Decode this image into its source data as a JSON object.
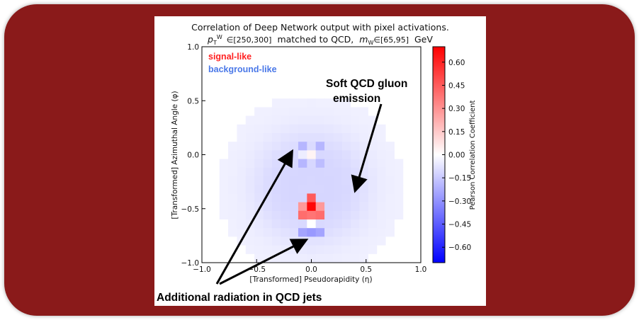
{
  "chart_data": {
    "type": "heatmap",
    "title": "Correlation of Deep Network output with pixel activations.",
    "subtitle": "p_T^W ∈[250,300] matched to QCD, m_W∈[65,95] GeV",
    "subtitle_parts": {
      "pt": "p",
      "pt_sub": "T",
      "pt_sup": "W",
      "pt_range": "∈[250,300]",
      "mid": "matched to QCD,",
      "m": "m",
      "m_sub": "W",
      "m_range": "∈[65,95]",
      "unit": "GeV"
    },
    "xlabel": "[Transformed] Pseudorapidity (η)",
    "ylabel": "[Transformed] Azimuthal Angle (φ)",
    "xlim": [
      -1.0,
      1.0
    ],
    "ylim": [
      -1.0,
      1.0
    ],
    "xticks": [
      "−1.0",
      "−0.5",
      "0.0",
      "0.5",
      "1.0"
    ],
    "yticks": [
      "1.0",
      "0.5",
      "0.0",
      "−0.5",
      "−1.0"
    ],
    "colorbar": {
      "label": "Pearson Correlation Coefficient",
      "range": [
        -0.7,
        0.7
      ],
      "ticks": [
        "0.60",
        "0.45",
        "0.30",
        "0.15",
        "0.00",
        "−0.15",
        "−0.30",
        "−0.45",
        "−0.60"
      ]
    },
    "legend": [
      {
        "label": "signal-like",
        "color": "#ff2020"
      },
      {
        "label": "background-like",
        "color": "#4a78e8"
      }
    ],
    "annotations": [
      {
        "text": "Soft QCD gluon emission",
        "lines": [
          "Soft QCD gluon",
          "emission"
        ]
      },
      {
        "text": "Additional radiation in QCD jets"
      }
    ],
    "grid_size": 25,
    "hotspots": [
      {
        "eta": 0.0,
        "phi": -0.48,
        "value": 0.68
      },
      {
        "eta": -0.06,
        "phi": -0.44,
        "value": 0.45
      },
      {
        "eta": 0.06,
        "phi": -0.44,
        "value": 0.45
      },
      {
        "eta": -0.06,
        "phi": -0.54,
        "value": 0.4
      },
      {
        "eta": 0.06,
        "phi": -0.54,
        "value": 0.4
      },
      {
        "eta": 0.0,
        "phi": -0.4,
        "value": 0.45
      },
      {
        "eta": 0.0,
        "phi": -0.56,
        "value": 0.38
      },
      {
        "eta": -0.1,
        "phi": -0.48,
        "value": 0.28
      },
      {
        "eta": 0.1,
        "phi": -0.48,
        "value": 0.28
      },
      {
        "eta": 0.0,
        "phi": 0.0,
        "value": 0.03
      },
      {
        "eta": -0.05,
        "phi": 0.0,
        "value": -0.05
      },
      {
        "eta": 0.0,
        "phi": -0.64,
        "value": 0.0
      },
      {
        "eta": 0.0,
        "phi": -0.72,
        "value": -0.28
      },
      {
        "eta": -0.1,
        "phi": -0.72,
        "value": -0.25
      },
      {
        "eta": 0.1,
        "phi": -0.72,
        "value": -0.25
      },
      {
        "eta": -0.08,
        "phi": 0.08,
        "value": -0.2
      },
      {
        "eta": 0.08,
        "phi": 0.08,
        "value": -0.2
      },
      {
        "eta": -0.08,
        "phi": -0.08,
        "value": -0.2
      },
      {
        "eta": 0.08,
        "phi": -0.08,
        "value": -0.18
      }
    ]
  }
}
